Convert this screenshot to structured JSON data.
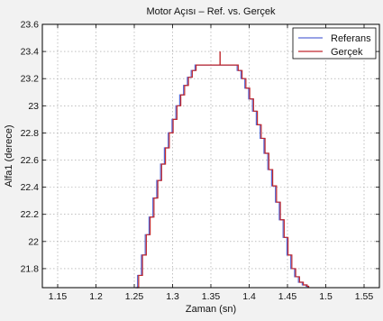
{
  "chart_data": {
    "type": "line",
    "title": "Motor Açısı – Ref. vs. Gerçek",
    "xlabel": "Zaman (sn)",
    "ylabel": "Alfa1 (derece)",
    "xlim": [
      1.13,
      1.57
    ],
    "ylim": [
      21.66,
      23.6
    ],
    "xticks": [
      "1.15",
      "1.2",
      "1.25",
      "1.3",
      "1.35",
      "1.4",
      "1.45",
      "1.5",
      "1.55"
    ],
    "yticks": [
      "21.8",
      "22",
      "22.2",
      "22.4",
      "22.6",
      "22.8",
      "23",
      "23.2",
      "23.4",
      "23.6"
    ],
    "grid": true,
    "legend_position": "top-right",
    "series": [
      {
        "name": "Referans",
        "color": "#5b6bd6",
        "x": [
          1.252,
          1.255,
          1.26,
          1.265,
          1.27,
          1.275,
          1.28,
          1.285,
          1.29,
          1.295,
          1.3,
          1.305,
          1.31,
          1.315,
          1.32,
          1.325,
          1.33,
          1.335,
          1.34,
          1.345,
          1.35,
          1.355,
          1.36,
          1.365,
          1.37,
          1.375,
          1.38,
          1.385,
          1.39,
          1.395,
          1.4,
          1.405,
          1.41,
          1.415,
          1.42,
          1.425,
          1.43,
          1.435,
          1.44,
          1.445,
          1.45,
          1.455,
          1.46,
          1.465,
          1.47,
          1.475,
          1.477
        ],
        "y": [
          21.66,
          21.75,
          21.9,
          22.05,
          22.18,
          22.32,
          22.45,
          22.57,
          22.69,
          22.8,
          22.9,
          23.0,
          23.08,
          23.15,
          23.21,
          23.26,
          23.3,
          23.3,
          23.3,
          23.3,
          23.3,
          23.3,
          23.3,
          23.3,
          23.3,
          23.3,
          23.3,
          23.26,
          23.2,
          23.13,
          23.05,
          22.96,
          22.86,
          22.76,
          22.65,
          22.53,
          22.41,
          22.29,
          22.16,
          22.03,
          21.9,
          21.8,
          21.74,
          21.7,
          21.68,
          21.67,
          21.66
        ]
      },
      {
        "name": "Gerçek",
        "color": "#c0282d",
        "x": [
          1.252,
          1.255,
          1.26,
          1.265,
          1.27,
          1.275,
          1.28,
          1.285,
          1.29,
          1.295,
          1.3,
          1.305,
          1.31,
          1.315,
          1.32,
          1.325,
          1.33,
          1.335,
          1.34,
          1.345,
          1.35,
          1.355,
          1.36,
          1.365,
          1.37,
          1.375,
          1.38,
          1.385,
          1.39,
          1.395,
          1.4,
          1.405,
          1.41,
          1.415,
          1.42,
          1.425,
          1.43,
          1.435,
          1.44,
          1.445,
          1.45,
          1.455,
          1.46,
          1.465,
          1.47,
          1.475,
          1.477
        ],
        "y": [
          21.66,
          21.75,
          21.9,
          22.05,
          22.18,
          22.32,
          22.45,
          22.57,
          22.69,
          22.8,
          22.9,
          23.0,
          23.08,
          23.15,
          23.21,
          23.26,
          23.3,
          23.3,
          23.3,
          23.3,
          23.3,
          23.3,
          23.3,
          23.3,
          23.3,
          23.3,
          23.3,
          23.26,
          23.2,
          23.13,
          23.05,
          22.96,
          22.86,
          22.76,
          22.65,
          22.53,
          22.41,
          22.29,
          22.16,
          22.03,
          21.9,
          21.8,
          21.74,
          21.7,
          21.68,
          21.67,
          21.66
        ]
      }
    ],
    "annotations": [
      {
        "type": "spike",
        "series": "Gerçek",
        "x": 1.362,
        "y_from": 23.3,
        "y_to": 23.4
      }
    ]
  }
}
